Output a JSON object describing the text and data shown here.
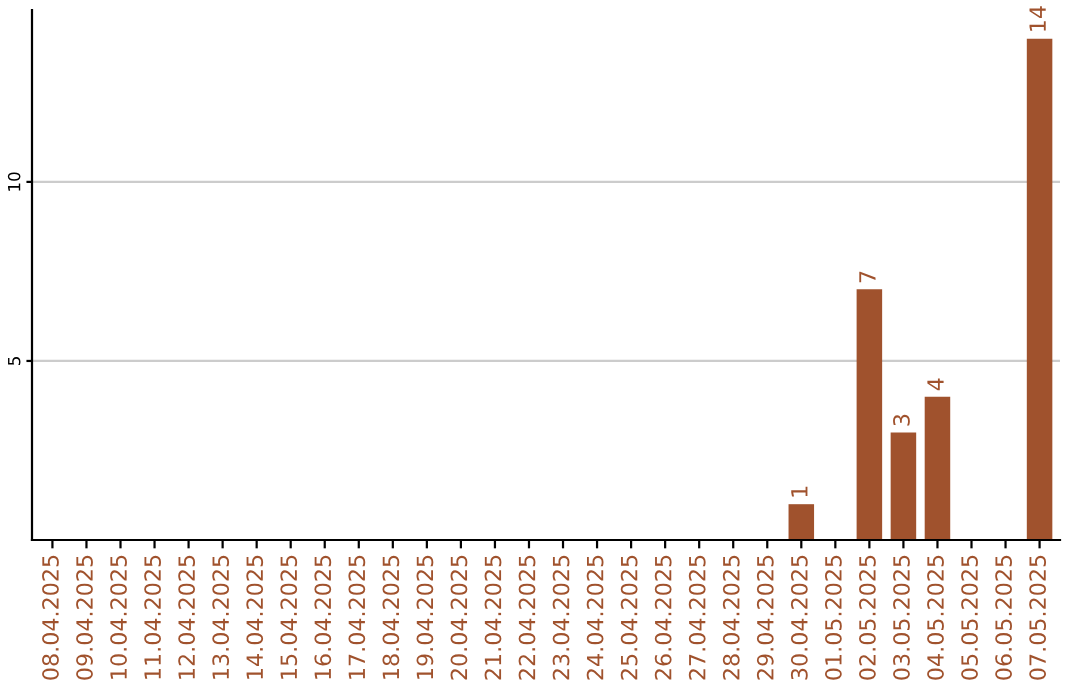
{
  "chart_data": {
    "type": "bar",
    "categories": [
      "08.04.2025",
      "09.04.2025",
      "10.04.2025",
      "11.04.2025",
      "12.04.2025",
      "13.04.2025",
      "14.04.2025",
      "15.04.2025",
      "16.04.2025",
      "17.04.2025",
      "18.04.2025",
      "19.04.2025",
      "20.04.2025",
      "21.04.2025",
      "22.04.2025",
      "23.04.2025",
      "24.04.2025",
      "25.04.2025",
      "26.04.2025",
      "27.04.2025",
      "28.04.2025",
      "29.04.2025",
      "30.04.2025",
      "01.05.2025",
      "02.05.2025",
      "03.05.2025",
      "04.05.2025",
      "05.05.2025",
      "06.05.2025",
      "07.05.2025"
    ],
    "values": [
      0,
      0,
      0,
      0,
      0,
      0,
      0,
      0,
      0,
      0,
      0,
      0,
      0,
      0,
      0,
      0,
      0,
      0,
      0,
      0,
      0,
      0,
      1,
      0,
      7,
      3,
      4,
      0,
      0,
      14
    ],
    "value_labels": [
      null,
      null,
      null,
      null,
      null,
      null,
      null,
      null,
      null,
      null,
      null,
      null,
      null,
      null,
      null,
      null,
      null,
      null,
      null,
      null,
      null,
      null,
      "1",
      null,
      "7",
      "3",
      "4",
      null,
      null,
      "14"
    ],
    "color": "#a0522d",
    "ylim": [
      0,
      14.8
    ],
    "yticks": [
      5,
      10
    ],
    "grid": "y"
  }
}
